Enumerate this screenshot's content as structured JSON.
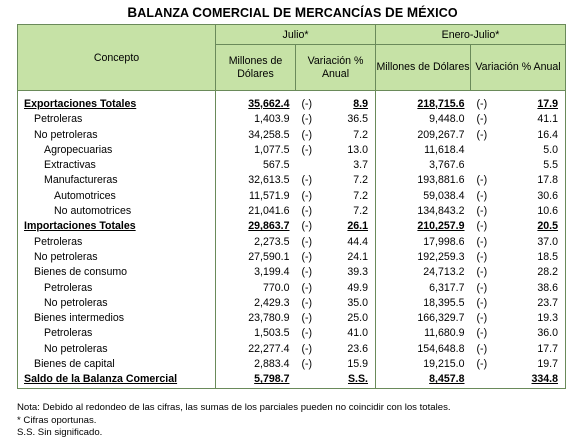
{
  "title": "Balanza comercial de mercancías de México",
  "header": {
    "concepto": "Concepto",
    "period1": "Julio*",
    "period2": "Enero-Julio*",
    "millones": "Millones de Dólares",
    "variacion": "Variación % Anual"
  },
  "rows": [
    {
      "label": "Exportaciones Totales",
      "level": 0,
      "bold": true,
      "m1": "35,662.4",
      "s1": "(-)",
      "v1": "8.9",
      "m2": "218,715.6",
      "s2": "(-)",
      "v2": "17.9"
    },
    {
      "label": "Petroleras",
      "level": 1,
      "m1": "1,403.9",
      "s1": "(-)",
      "v1": "36.5",
      "m2": "9,448.0",
      "s2": "(-)",
      "v2": "41.1"
    },
    {
      "label": "No petroleras",
      "level": 1,
      "m1": "34,258.5",
      "s1": "(-)",
      "v1": "7.2",
      "m2": "209,267.7",
      "s2": "(-)",
      "v2": "16.4"
    },
    {
      "label": "Agropecuarias",
      "level": 2,
      "m1": "1,077.5",
      "s1": "(-)",
      "v1": "13.0",
      "m2": "11,618.4",
      "s2": "",
      "v2": "5.0"
    },
    {
      "label": "Extractivas",
      "level": 2,
      "m1": "567.5",
      "s1": "",
      "v1": "3.7",
      "m2": "3,767.6",
      "s2": "",
      "v2": "5.5"
    },
    {
      "label": "Manufactureras",
      "level": 2,
      "m1": "32,613.5",
      "s1": "(-)",
      "v1": "7.2",
      "m2": "193,881.6",
      "s2": "(-)",
      "v2": "17.8"
    },
    {
      "label": "Automotrices",
      "level": 3,
      "m1": "11,571.9",
      "s1": "(-)",
      "v1": "7.2",
      "m2": "59,038.4",
      "s2": "(-)",
      "v2": "30.6"
    },
    {
      "label": "No automotrices",
      "level": 3,
      "m1": "21,041.6",
      "s1": "(-)",
      "v1": "7.2",
      "m2": "134,843.2",
      "s2": "(-)",
      "v2": "10.6"
    },
    {
      "label": "Importaciones Totales",
      "level": 0,
      "bold": true,
      "m1": "29,863.7",
      "s1": "(-)",
      "v1": "26.1",
      "m2": "210,257.9",
      "s2": "(-)",
      "v2": "20.5"
    },
    {
      "label": "Petroleras",
      "level": 1,
      "m1": "2,273.5",
      "s1": "(-)",
      "v1": "44.4",
      "m2": "17,998.6",
      "s2": "(-)",
      "v2": "37.0"
    },
    {
      "label": "No petroleras",
      "level": 1,
      "m1": "27,590.1",
      "s1": "(-)",
      "v1": "24.1",
      "m2": "192,259.3",
      "s2": "(-)",
      "v2": "18.5"
    },
    {
      "label": "Bienes de consumo",
      "level": 1,
      "m1": "3,199.4",
      "s1": "(-)",
      "v1": "39.3",
      "m2": "24,713.2",
      "s2": "(-)",
      "v2": "28.2"
    },
    {
      "label": "Petroleras",
      "level": 2,
      "m1": "770.0",
      "s1": "(-)",
      "v1": "49.9",
      "m2": "6,317.7",
      "s2": "(-)",
      "v2": "38.6"
    },
    {
      "label": "No petroleras",
      "level": 2,
      "m1": "2,429.3",
      "s1": "(-)",
      "v1": "35.0",
      "m2": "18,395.5",
      "s2": "(-)",
      "v2": "23.7"
    },
    {
      "label": "Bienes intermedios",
      "level": 1,
      "m1": "23,780.9",
      "s1": "(-)",
      "v1": "25.0",
      "m2": "166,329.7",
      "s2": "(-)",
      "v2": "19.3"
    },
    {
      "label": "Petroleras",
      "level": 2,
      "m1": "1,503.5",
      "s1": "(-)",
      "v1": "41.0",
      "m2": "11,680.9",
      "s2": "(-)",
      "v2": "36.0"
    },
    {
      "label": "No petroleras",
      "level": 2,
      "m1": "22,277.4",
      "s1": "(-)",
      "v1": "23.6",
      "m2": "154,648.8",
      "s2": "(-)",
      "v2": "17.7"
    },
    {
      "label": "Bienes de capital",
      "level": 1,
      "m1": "2,883.4",
      "s1": "(-)",
      "v1": "15.9",
      "m2": "19,215.0",
      "s2": "(-)",
      "v2": "19.7"
    },
    {
      "label": "Saldo de la Balanza Comercial",
      "level": 0,
      "bold": true,
      "m1": "5,798.7",
      "s1": "",
      "v1": "S.S.",
      "m2": "8,457.8",
      "s2": "",
      "v2": "334.8"
    }
  ],
  "notes": [
    "Nota: Debido al redondeo de las cifras, las sumas de los parciales pueden no coincidir con los totales.",
    "* Cifras oportunas.",
    "S.S. Sin significado."
  ]
}
